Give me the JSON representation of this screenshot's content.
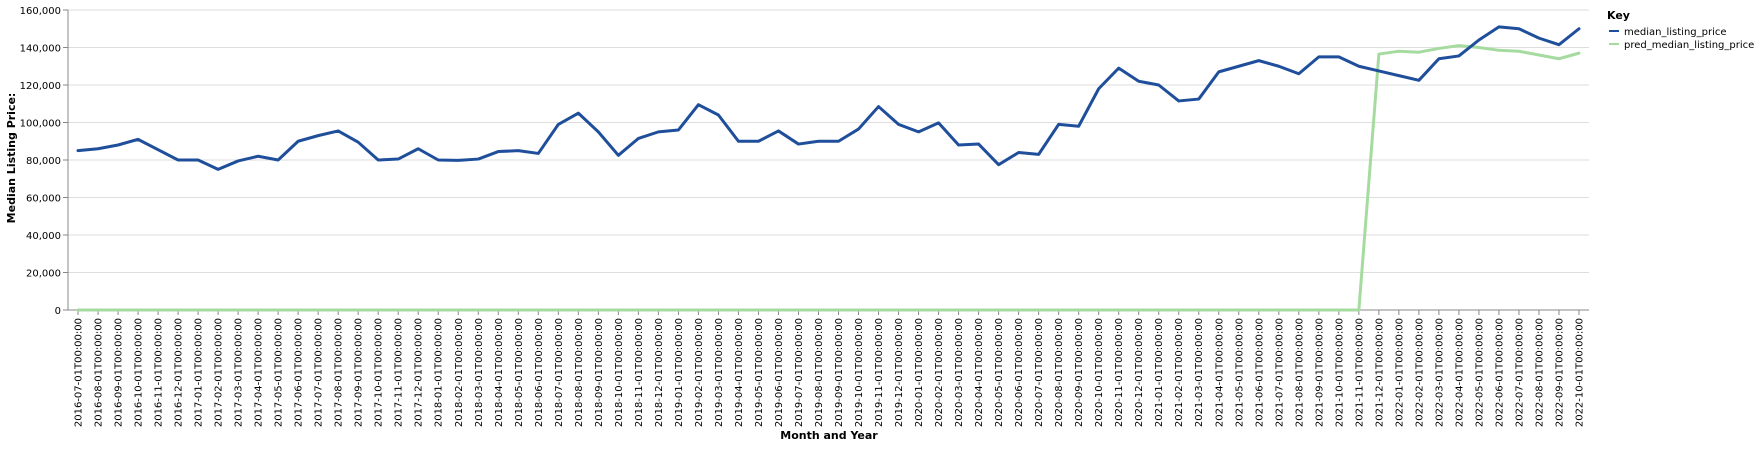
{
  "chart_data": {
    "type": "line",
    "title": "",
    "xlabel": "Month and Year",
    "ylabel": "Median Listing Price:",
    "ylim": [
      0,
      160000
    ],
    "y_ticks": [
      0,
      20000,
      40000,
      60000,
      80000,
      100000,
      120000,
      140000,
      160000
    ],
    "y_tick_labels": [
      "0",
      "20,000",
      "40,000",
      "60,000",
      "80,000",
      "100,000",
      "120,000",
      "140,000",
      "160,000"
    ],
    "grid": true,
    "legend": {
      "title": "Key",
      "placement": "right"
    },
    "categories": [
      "2016-07-01T00:00:00",
      "2016-08-01T00:00:00",
      "2016-09-01T00:00:00",
      "2016-10-01T00:00:00",
      "2016-11-01T00:00:00",
      "2016-12-01T00:00:00",
      "2017-01-01T00:00:00",
      "2017-02-01T00:00:00",
      "2017-03-01T00:00:00",
      "2017-04-01T00:00:00",
      "2017-05-01T00:00:00",
      "2017-06-01T00:00:00",
      "2017-07-01T00:00:00",
      "2017-08-01T00:00:00",
      "2017-09-01T00:00:00",
      "2017-10-01T00:00:00",
      "2017-11-01T00:00:00",
      "2017-12-01T00:00:00",
      "2018-01-01T00:00:00",
      "2018-02-01T00:00:00",
      "2018-03-01T00:00:00",
      "2018-04-01T00:00:00",
      "2018-05-01T00:00:00",
      "2018-06-01T00:00:00",
      "2018-07-01T00:00:00",
      "2018-08-01T00:00:00",
      "2018-09-01T00:00:00",
      "2018-10-01T00:00:00",
      "2018-11-01T00:00:00",
      "2018-12-01T00:00:00",
      "2019-01-01T00:00:00",
      "2019-02-01T00:00:00",
      "2019-03-01T00:00:00",
      "2019-04-01T00:00:00",
      "2019-05-01T00:00:00",
      "2019-06-01T00:00:00",
      "2019-07-01T00:00:00",
      "2019-08-01T00:00:00",
      "2019-09-01T00:00:00",
      "2019-10-01T00:00:00",
      "2019-11-01T00:00:00",
      "2019-12-01T00:00:00",
      "2020-01-01T00:00:00",
      "2020-02-01T00:00:00",
      "2020-03-01T00:00:00",
      "2020-04-01T00:00:00",
      "2020-05-01T00:00:00",
      "2020-06-01T00:00:00",
      "2020-07-01T00:00:00",
      "2020-08-01T00:00:00",
      "2020-09-01T00:00:00",
      "2020-10-01T00:00:00",
      "2020-11-01T00:00:00",
      "2020-12-01T00:00:00",
      "2021-01-01T00:00:00",
      "2021-02-01T00:00:00",
      "2021-03-01T00:00:00",
      "2021-04-01T00:00:00",
      "2021-05-01T00:00:00",
      "2021-06-01T00:00:00",
      "2021-07-01T00:00:00",
      "2021-08-01T00:00:00",
      "2021-09-01T00:00:00",
      "2021-10-01T00:00:00",
      "2021-11-01T00:00:00",
      "2021-12-01T00:00:00",
      "2022-01-01T00:00:00",
      "2022-02-01T00:00:00",
      "2022-03-01T00:00:00",
      "2022-04-01T00:00:00",
      "2022-05-01T00:00:00",
      "2022-06-01T00:00:00",
      "2022-07-01T00:00:00",
      "2022-08-01T00:00:00",
      "2022-09-01T00:00:00",
      "2022-10-01T00:00:00"
    ],
    "series": [
      {
        "name": "median_listing_price",
        "color": "#1f4e9a",
        "values": [
          85000,
          86000,
          88000,
          91000,
          85500,
          80000,
          80000,
          75000,
          79500,
          82000,
          80000,
          90000,
          93000,
          95500,
          89500,
          80000,
          80500,
          86000,
          80000,
          79800,
          80500,
          84500,
          85000,
          83500,
          99000,
          105000,
          95000,
          82500,
          91500,
          95000,
          96000,
          109500,
          104000,
          90000,
          90000,
          95500,
          88500,
          90000,
          90000,
          96500,
          108500,
          99000,
          95000,
          99800,
          88000,
          88500,
          77500,
          84000,
          83000,
          99000,
          98000,
          118000,
          129000,
          122000,
          120000,
          111500,
          112500,
          127000,
          130000,
          133000,
          130000,
          126000,
          135000,
          135000,
          130000,
          127500,
          125000,
          122500,
          134000,
          135500,
          144000,
          151000,
          150000,
          145000,
          141500,
          150000
        ]
      },
      {
        "name": "pred_median_listing_price",
        "color": "#a6dba0",
        "values": [
          0,
          0,
          0,
          0,
          0,
          0,
          0,
          0,
          0,
          0,
          0,
          0,
          0,
          0,
          0,
          0,
          0,
          0,
          0,
          0,
          0,
          0,
          0,
          0,
          0,
          0,
          0,
          0,
          0,
          0,
          0,
          0,
          0,
          0,
          0,
          0,
          0,
          0,
          0,
          0,
          0,
          0,
          0,
          0,
          0,
          0,
          0,
          0,
          0,
          0,
          0,
          0,
          0,
          0,
          0,
          0,
          0,
          0,
          0,
          0,
          0,
          0,
          0,
          0,
          0,
          136500,
          138000,
          137500,
          139500,
          141000,
          140000,
          138500,
          138000,
          136000,
          134000,
          137000
        ]
      }
    ]
  }
}
